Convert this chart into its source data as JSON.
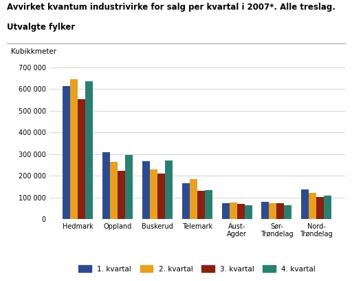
{
  "title_line1": "Avvirket kvantum industrivirke for salg per kvartal i 2007*. Alle treslag.",
  "title_line2": "Utvalgte fylker",
  "ylabel": "Kubikkmeter",
  "categories": [
    "Hedmark",
    "Oppland",
    "Buskerud",
    "Telemark",
    "Aust-\nAgder",
    "Sør-\nTrøndelag",
    "Nord-\nTrøndelag"
  ],
  "quarters": [
    "1. kvartal",
    "2. kvartal",
    "3. kvartal",
    "4. kvartal"
  ],
  "values": {
    "1. kvartal": [
      615000,
      308000,
      268000,
      165000,
      73000,
      80000,
      138000
    ],
    "2. kvartal": [
      645000,
      265000,
      230000,
      185000,
      78000,
      75000,
      122000
    ],
    "3. kvartal": [
      553000,
      223000,
      210000,
      130000,
      72000,
      74000,
      103000
    ],
    "4. kvartal": [
      637000,
      295000,
      270000,
      133000,
      63000,
      65000,
      110000
    ]
  },
  "colors": {
    "1. kvartal": "#2E4B8F",
    "2. kvartal": "#E8A020",
    "3. kvartal": "#8B2010",
    "4. kvartal": "#2A8070"
  },
  "ylim": [
    0,
    700000
  ],
  "yticks": [
    0,
    100000,
    200000,
    300000,
    400000,
    500000,
    600000,
    700000
  ],
  "ytick_labels": [
    "0",
    "100 000",
    "200 000",
    "300 000",
    "400 000",
    "500 000",
    "600 000",
    "700 000"
  ],
  "background_color": "#ffffff",
  "grid_color": "#cccccc",
  "bar_width": 0.19
}
